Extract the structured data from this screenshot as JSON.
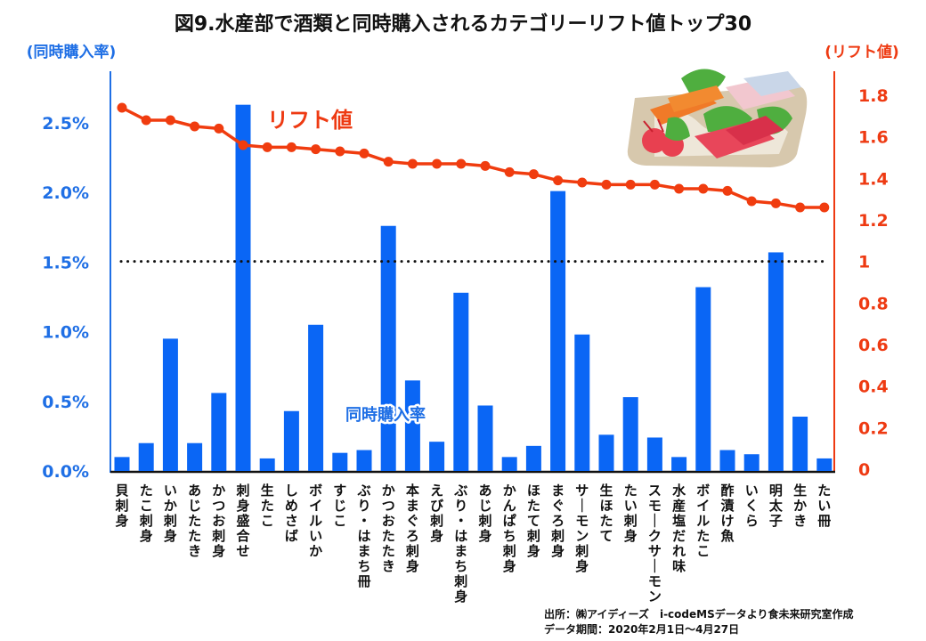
{
  "chart_data": {
    "type": "bar",
    "title": "図9.水産部で酒類と同時購入されるカテゴリーリフト値トップ30",
    "xlabel": "",
    "ylabel": "(同時購入率)",
    "y2label": "(リフト値)",
    "categories": [
      "貝刺身",
      "たこ刺身",
      "いか刺身",
      "あじたたき",
      "かつお刺身",
      "刺身盛合せ",
      "生たこ",
      "しめさば",
      "ボイルいか",
      "すじこ",
      "ぶり・はまち冊",
      "かつおたたき",
      "本まぐろ刺身",
      "えび刺身",
      "ぶり・はまち刺身",
      "あじ刺身",
      "かんぱち刺身",
      "ほたて刺身",
      "まぐろ刺身",
      "サーモン刺身",
      "生ほたて",
      "たい刺身",
      "スモークサーモン",
      "水産塩だれ味",
      "ボイルたこ",
      "酢漬け魚",
      "いくら",
      "明太子",
      "生かき",
      "たい冊"
    ],
    "series": [
      {
        "name": "同時購入率",
        "type": "bar",
        "axis": "left",
        "unit": "%",
        "color": "#0a66f5",
        "values": [
          0.1,
          0.2,
          0.95,
          0.2,
          0.56,
          2.63,
          0.09,
          0.43,
          1.05,
          0.13,
          0.15,
          1.76,
          0.65,
          0.21,
          1.28,
          0.47,
          0.1,
          0.18,
          2.01,
          0.98,
          0.26,
          0.53,
          0.24,
          0.1,
          1.32,
          0.15,
          0.12,
          1.57,
          0.39,
          0.09
        ]
      },
      {
        "name": "リフト値",
        "type": "line",
        "axis": "right",
        "color": "#f03c0f",
        "values": [
          1.74,
          1.68,
          1.68,
          1.65,
          1.64,
          1.56,
          1.55,
          1.55,
          1.54,
          1.53,
          1.52,
          1.48,
          1.47,
          1.47,
          1.47,
          1.46,
          1.43,
          1.42,
          1.39,
          1.38,
          1.37,
          1.37,
          1.37,
          1.35,
          1.35,
          1.34,
          1.29,
          1.28,
          1.26,
          1.26
        ]
      }
    ],
    "ylim": [
      0,
      2.5
    ],
    "y2lim": [
      0,
      1.8
    ],
    "yticks": [
      "0.0%",
      "0.5%",
      "1.0%",
      "1.5%",
      "2.0%",
      "2.5%"
    ],
    "ytick_values": [
      0,
      0.5,
      1.0,
      1.5,
      2.0,
      2.5
    ],
    "y2ticks": [
      "0",
      "0.2",
      "0.4",
      "0.6",
      "0.8",
      "1",
      "1.2",
      "1.4",
      "1.6",
      "1.8"
    ],
    "y2tick_values": [
      0,
      0.2,
      0.4,
      0.6,
      0.8,
      1.0,
      1.2,
      1.4,
      1.6,
      1.8
    ],
    "reference_line": {
      "axis": "right",
      "value": 1.0,
      "style": "dotted"
    },
    "annotations": [
      "リフト値",
      "同時購入率"
    ],
    "grid": false,
    "legend": "none"
  },
  "illustration": "sashimi-platter-icon",
  "source": {
    "line1": "出所：㈱アイディーズ　i-codeMSデータより食未来研究室作成",
    "line2": "データ期間：2020年2月1日～4月27日"
  }
}
